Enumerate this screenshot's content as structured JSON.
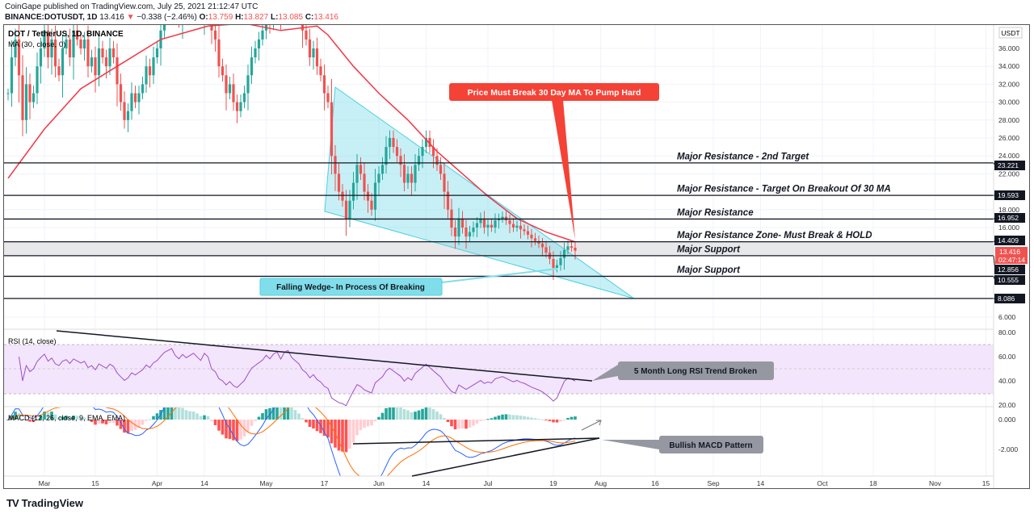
{
  "header": {
    "published": "CoinGape published on TradingView.com, July 25, 2021 21:12:47 UTC",
    "symbol": "BINANCE:DOTUSDT, 1D",
    "last": "13.416",
    "change": "−0.338 (−2.46%)",
    "o_label": "O:",
    "o": "13.759",
    "h_label": "H:",
    "h": "13.827",
    "l_label": "L:",
    "l": "13.085",
    "c_label": "C:",
    "c": "13.416"
  },
  "legend": {
    "title": "DOT / TetherUS, 1D, BINANCE",
    "ma": "MA (30, close, 0)",
    "rsi": "RSI (14, close)",
    "macd": "MACD (12, 26, close, 9, EMA, EMA)",
    "currency": "USDT"
  },
  "colors": {
    "up": "#26a69a",
    "down": "#ef5350",
    "ma": "#f23645",
    "rsi": "#9c4fc9",
    "macd": "#2962ff",
    "signal": "#ff6d00",
    "wedge": "#80deea"
  },
  "annotations": {
    "ma_callout": "Price Must Break 30 Day MA To Pump Hard",
    "wedge_callout": "Falling Wedge- In Process Of Breaking",
    "rsi_callout": "5 Month Long RSI Trend Broken",
    "macd_callout": "Bullish MACD Pattern",
    "levels": [
      {
        "value": 23.221,
        "label": "Major Resistance - 2nd Target",
        "tag": "23.221"
      },
      {
        "value": 19.593,
        "label": "Major Resistance - Target On Breakout Of 30 MA",
        "tag": "19.593"
      },
      {
        "value": 16.952,
        "label": "Major Resistance",
        "tag": "16.952"
      },
      {
        "value": 14.409,
        "label": "Major Resistance Zone- Must Break & HOLD",
        "tag": "14.409"
      },
      {
        "value": 12.856,
        "label": "Major Support",
        "tag": "12.856"
      },
      {
        "value": 10.555,
        "label": "Major Support",
        "tag": "10.555"
      },
      {
        "value": 8.086,
        "label": "",
        "tag": "8.086"
      }
    ],
    "price_tag": "13.416",
    "countdown": "02:47:14"
  },
  "chart_data": {
    "type": "candlestick",
    "title": "DOT / TetherUS, 1D, BINANCE",
    "start_date": "2021-02-19",
    "closes": [
      31,
      35,
      37,
      33,
      28,
      32,
      30,
      31,
      34,
      36,
      38,
      35,
      37,
      34,
      33,
      36,
      37,
      35,
      38,
      37,
      36,
      37,
      34,
      35,
      33,
      36,
      35,
      34,
      36,
      35,
      32,
      30,
      28,
      29,
      31,
      30,
      31,
      32,
      34,
      33,
      35,
      36,
      38,
      40,
      41,
      42,
      40,
      39,
      41,
      40,
      41,
      42,
      41,
      40,
      43,
      42,
      38,
      37,
      34,
      33,
      31,
      32,
      30,
      29,
      30,
      31,
      33,
      35,
      36,
      37,
      38,
      40,
      39,
      41,
      42,
      40,
      43,
      44,
      42,
      41,
      40,
      38,
      37,
      35,
      36,
      34,
      33,
      31,
      30,
      24,
      22,
      20,
      19,
      17,
      19,
      21,
      23,
      22,
      20,
      19,
      18,
      21,
      22,
      23,
      25,
      26,
      25,
      24,
      23,
      21,
      22,
      21,
      23,
      24,
      25,
      26,
      25,
      24,
      23,
      22,
      20,
      18,
      16,
      15,
      17,
      16,
      15,
      15.5,
      16,
      16.5,
      17,
      16,
      16.3,
      16,
      16.8,
      17,
      17.2,
      16.8,
      16.4,
      16.0,
      16.2,
      15.8,
      15.6,
      15.2,
      14.8,
      14.5,
      14.2,
      13.8,
      13.2,
      12.5,
      11.5,
      11.8,
      12.6,
      13.5,
      13.9,
      13.75,
      13.416
    ],
    "ma30": [
      [
        0,
        21.5
      ],
      [
        10,
        27
      ],
      [
        20,
        31.5
      ],
      [
        30,
        34
      ],
      [
        42,
        37
      ],
      [
        55,
        38.5
      ],
      [
        65,
        38.8
      ],
      [
        75,
        38
      ],
      [
        85,
        38.5
      ],
      [
        88,
        37.5
      ],
      [
        95,
        34
      ],
      [
        102,
        31
      ],
      [
        110,
        28
      ],
      [
        118,
        24.5
      ],
      [
        125,
        22
      ],
      [
        132,
        19.5
      ],
      [
        140,
        17
      ],
      [
        148,
        15.5
      ],
      [
        156,
        14.4
      ]
    ],
    "price_ticks": [
      36,
      34,
      32,
      30,
      28,
      26,
      24,
      22,
      18,
      16,
      6
    ],
    "x_ticks": [
      {
        "label": "Mar",
        "day": 10
      },
      {
        "label": "15",
        "day": 24
      },
      {
        "label": "Apr",
        "day": 41
      },
      {
        "label": "14",
        "day": 54
      },
      {
        "label": "May",
        "day": 71
      },
      {
        "label": "17",
        "day": 87
      },
      {
        "label": "Jun",
        "day": 102
      },
      {
        "label": "14",
        "day": 115
      },
      {
        "label": "Jul",
        "day": 132
      },
      {
        "label": "19",
        "day": 150
      },
      {
        "label": "Aug",
        "day": 163
      },
      {
        "label": "16",
        "day": 178
      },
      {
        "label": "Sep",
        "day": 194
      },
      {
        "label": "14",
        "day": 207
      },
      {
        "label": "Oct",
        "day": 224
      },
      {
        "label": "18",
        "day": 238
      },
      {
        "label": "Nov",
        "day": 255
      },
      {
        "label": "15",
        "day": 269
      }
    ],
    "rsi_ticks": [
      "80.00",
      "60.00",
      "40.00",
      "20.00"
    ],
    "macd_ticks": [
      "0.000",
      "-2.000"
    ],
    "rsi_band": [
      30,
      70
    ]
  },
  "footer": {
    "brand": "TradingView"
  }
}
